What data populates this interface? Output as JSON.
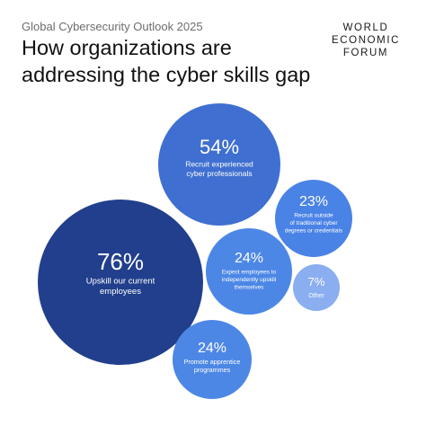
{
  "header": {
    "subtitle": "Global Cybersecurity Outlook 2025",
    "title": "How organizations are addressing the cyber skills gap"
  },
  "logo": {
    "lines": [
      "WORLD",
      "ECONOMIC",
      "FORUM"
    ],
    "color": "#1a1a1a"
  },
  "chart_data": {
    "type": "bubble",
    "title": "How organizations are addressing the cyber skills gap",
    "categories": [
      "Upskill our current employees",
      "Recruit experienced cyber professionals",
      "Recruit outside of traditional cyber degrees or credentials",
      "Expect employees to independently upskill themselves",
      "Promote apprentice programmes",
      "Other"
    ],
    "values": [
      76,
      54,
      23,
      24,
      24,
      7
    ],
    "value_labels": [
      "76%",
      "54%",
      "23%",
      "24%",
      "24%",
      "7%"
    ],
    "label_lines": [
      [
        "Upskill our current",
        "employees"
      ],
      [
        "Recruit experienced",
        "cyber professionals"
      ],
      [
        "Recruit outside",
        "of traditional cyber",
        "degrees or credentials"
      ],
      [
        "Expect employees to",
        "independently upskill",
        "themselves"
      ],
      [
        "Promote apprentice",
        "programmes"
      ],
      [
        "Other"
      ]
    ],
    "colors": [
      "#213f8c",
      "#3f6fd0",
      "#4a83e6",
      "#4d87e6",
      "#4d87e6",
      "#8aaef0"
    ],
    "unit": "%"
  }
}
